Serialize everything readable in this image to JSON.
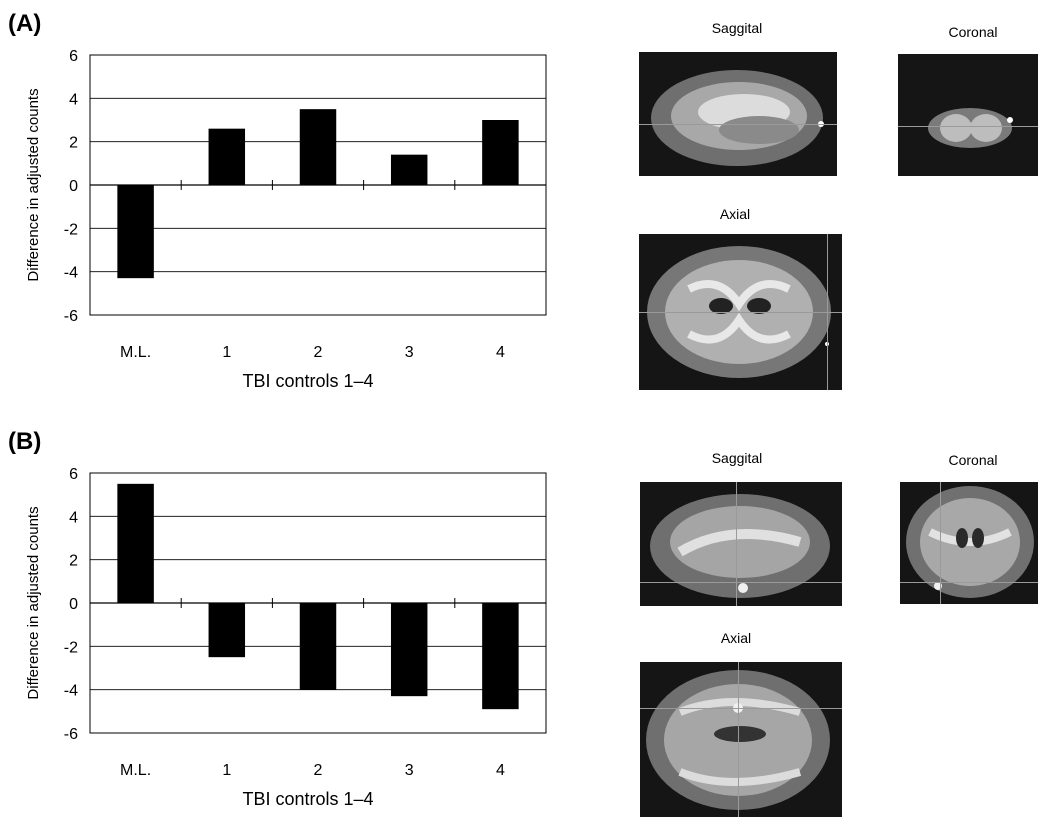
{
  "panels": [
    {
      "label": "(A)",
      "images": {
        "sagittal": "Saggital",
        "coronal": "Coronal",
        "axial": "Axial"
      }
    },
    {
      "label": "(B)",
      "images": {
        "sagittal": "Saggital",
        "coronal": "Coronal",
        "axial": "Axial"
      }
    }
  ],
  "chart_data": [
    {
      "type": "bar",
      "categories": [
        "M.L.",
        "1",
        "2",
        "3",
        "4"
      ],
      "values": [
        -4.3,
        2.6,
        3.5,
        1.4,
        3.0
      ],
      "xlabel": "TBI controls 1–4",
      "ylabel": "Difference in adjusted counts",
      "ylim": [
        -6,
        6
      ],
      "yticks": [
        "6",
        "4",
        "2",
        "0",
        "-2",
        "-4",
        "-6"
      ],
      "grid": true,
      "bar_color": "#000000"
    },
    {
      "type": "bar",
      "categories": [
        "M.L.",
        "1",
        "2",
        "3",
        "4"
      ],
      "values": [
        5.5,
        -2.5,
        -4.0,
        -4.3,
        -4.9
      ],
      "xlabel": "TBI controls 1–4",
      "ylabel": "Difference in adjusted counts",
      "ylim": [
        -6,
        6
      ],
      "yticks": [
        "6",
        "4",
        "2",
        "0",
        "-2",
        "-4",
        "-6"
      ],
      "grid": true,
      "bar_color": "#000000"
    }
  ]
}
